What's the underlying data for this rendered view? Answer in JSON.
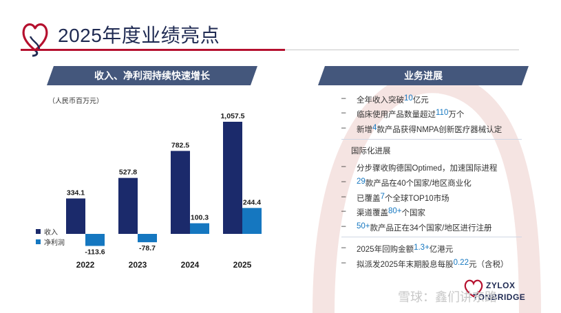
{
  "title": "2025年度业绩亮点",
  "left_panel": {
    "banner": "收入、净利润持续快速增长",
    "unit": "（人民币百万元）"
  },
  "right_panel": {
    "banner": "业务进展",
    "group1": [
      {
        "pre": "全年收入突破",
        "hl": "10",
        "post": "亿元"
      },
      {
        "pre": "临床使用产品数量超过",
        "hl": "110",
        "post": "万个"
      },
      {
        "pre": "新增",
        "hl": "4",
        "post": "款产品获得NMPA创新医疗器械认定"
      }
    ],
    "intl_title": "国际化进展",
    "group2": [
      {
        "pre": "分步骤收购德国Optimed，加速国际进程",
        "hl": "",
        "post": ""
      },
      {
        "pre": "",
        "hl": "29",
        "post": "款产品在40个国家/地区商业化"
      },
      {
        "pre": "已覆盖",
        "hl": "7",
        "post": "个全球TOP10市场"
      },
      {
        "pre": "渠道覆盖",
        "hl": "80+",
        "post": "个国家"
      },
      {
        "pre": "",
        "hl": "50+",
        "post": "款产品正在34个国家/地区进行注册"
      }
    ],
    "group3": [
      {
        "pre": "2025年回购金额",
        "hl": "1.3+",
        "post": "亿港元"
      },
      {
        "pre": "拟派发2025年末期股息每股",
        "hl": "0.22",
        "post": "元（含税）"
      }
    ]
  },
  "dash": "–",
  "brand": {
    "line1": "ZYLOX",
    "line2": "TONBRIDGE"
  },
  "watermark": "雪球：鑫们讲东路",
  "colors": {
    "revenue": "#1b2a6b",
    "net_profit": "#1577c0",
    "accent_red": "#b5102e",
    "banner": "#44577c"
  },
  "chart_data": {
    "type": "bar",
    "categories": [
      "2022",
      "2023",
      "2024",
      "2025"
    ],
    "series": [
      {
        "name": "收入",
        "values": [
          334.1,
          527.8,
          782.5,
          1057.5
        ],
        "labels": [
          "334.1",
          "527.8",
          "782.5",
          "1,057.5"
        ]
      },
      {
        "name": "净利润",
        "values": [
          -113.6,
          -78.7,
          100.3,
          244.4
        ],
        "labels": [
          "-113.6",
          "-78.7",
          "100.3",
          "244.4"
        ]
      }
    ],
    "title": "收入、净利润持续快速增长",
    "ylabel": "人民币百万元",
    "ylim": [
      -150,
      1100
    ],
    "grid": false
  }
}
